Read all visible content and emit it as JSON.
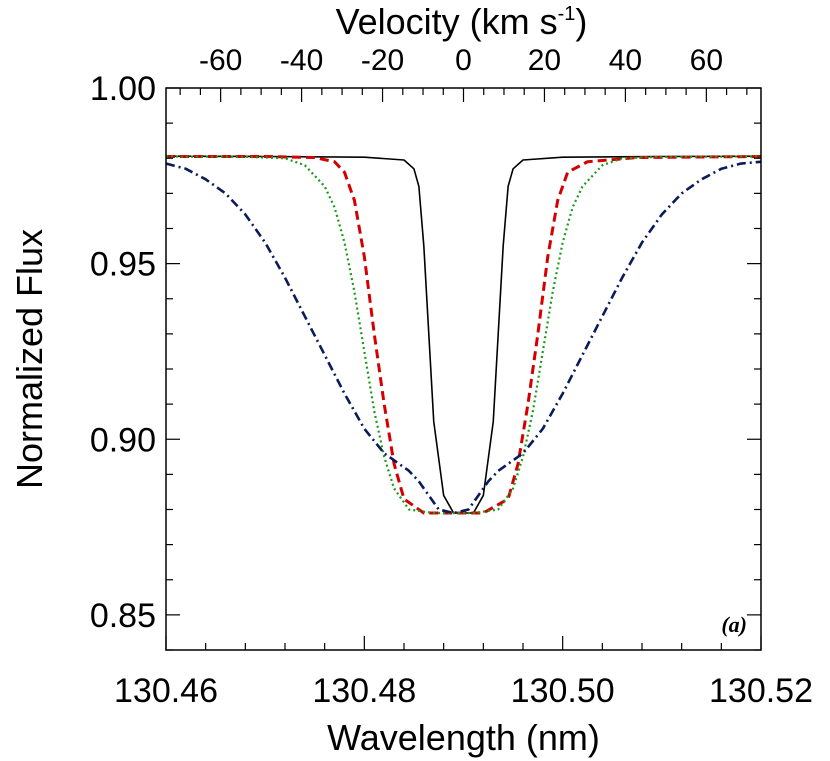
{
  "chart_data": {
    "type": "line",
    "xlabel": "Wavelength (nm)",
    "ylabel": "Normalized Flux",
    "x2label_main": "Velocity (km s",
    "x2label_sup": "-1",
    "x2label_end": ")",
    "panel_label": "(a)",
    "xlim": [
      130.46,
      130.52
    ],
    "ylim": [
      0.84,
      1.0
    ],
    "x2lim": [
      -73.5,
      73.5
    ],
    "xticks": [
      130.46,
      130.48,
      130.5,
      130.52
    ],
    "xtick_labels": [
      "130.46",
      "130.48",
      "130.50",
      "130.52"
    ],
    "yticks": [
      0.85,
      0.9,
      0.95,
      1.0
    ],
    "ytick_labels": [
      "0.85",
      "0.90",
      "0.95",
      "1.00"
    ],
    "x2ticks": [
      -60,
      -40,
      -20,
      0,
      20,
      40,
      60
    ],
    "x2tick_labels": [
      "-60",
      "-40",
      "-20",
      "0",
      "20",
      "40",
      "60"
    ],
    "grid": false,
    "series": [
      {
        "color": "#000000",
        "style": "solid",
        "x": [
          130.46,
          130.47,
          130.48,
          130.484,
          130.485,
          130.4855,
          130.486,
          130.4865,
          130.487,
          130.488,
          130.489,
          130.49,
          130.491,
          130.492,
          130.493,
          130.4935,
          130.494,
          130.4945,
          130.495,
          130.496,
          130.5,
          130.51,
          130.52
        ],
        "values": [
          0.9806,
          0.9805,
          0.9803,
          0.9795,
          0.977,
          0.972,
          0.955,
          0.93,
          0.905,
          0.884,
          0.879,
          0.879,
          0.879,
          0.884,
          0.905,
          0.93,
          0.955,
          0.972,
          0.977,
          0.9795,
          0.9803,
          0.9805,
          0.9806
        ]
      },
      {
        "color": "#d40000",
        "style": "dashed",
        "x": [
          130.46,
          130.47,
          130.475,
          130.477,
          130.478,
          130.479,
          130.48,
          130.481,
          130.482,
          130.483,
          130.484,
          130.486,
          130.489,
          130.492,
          130.4945,
          130.4955,
          130.4965,
          130.4975,
          130.4985,
          130.4995,
          130.5005,
          130.5025,
          130.5075,
          130.52
        ],
        "values": [
          0.9805,
          0.9805,
          0.9802,
          0.979,
          0.976,
          0.968,
          0.952,
          0.93,
          0.91,
          0.893,
          0.883,
          0.879,
          0.879,
          0.879,
          0.883,
          0.893,
          0.91,
          0.93,
          0.952,
          0.968,
          0.976,
          0.979,
          0.9802,
          0.9805
        ]
      },
      {
        "color": "#1a9a1a",
        "style": "dotted",
        "x": [
          130.46,
          130.468,
          130.472,
          130.474,
          130.476,
          130.477,
          130.478,
          130.479,
          130.48,
          130.481,
          130.482,
          130.483,
          130.4845,
          130.487,
          130.489,
          130.491,
          130.4935,
          130.495,
          130.496,
          130.497,
          130.498,
          130.499,
          130.5,
          130.501,
          130.502,
          130.504,
          130.506,
          130.51,
          130.52
        ],
        "values": [
          0.9805,
          0.9804,
          0.98,
          0.978,
          0.972,
          0.966,
          0.956,
          0.942,
          0.925,
          0.908,
          0.895,
          0.886,
          0.88,
          0.879,
          0.879,
          0.879,
          0.88,
          0.886,
          0.895,
          0.908,
          0.925,
          0.942,
          0.956,
          0.966,
          0.972,
          0.978,
          0.98,
          0.9804,
          0.9805
        ]
      },
      {
        "color": "#0a1a5a",
        "style": "dashdot",
        "x": [
          130.46,
          130.462,
          130.464,
          130.466,
          130.468,
          130.47,
          130.472,
          130.474,
          130.476,
          130.478,
          130.48,
          130.482,
          130.4835,
          130.4845,
          130.4855,
          130.4865,
          130.4875,
          130.489,
          130.4905,
          130.4915,
          130.4925,
          130.4935,
          130.4945,
          130.496,
          130.498,
          130.5,
          130.502,
          130.504,
          130.506,
          130.508,
          130.51,
          130.512,
          130.514,
          130.516,
          130.518,
          130.52
        ],
        "values": [
          0.9785,
          0.977,
          0.974,
          0.97,
          0.964,
          0.956,
          0.946,
          0.935,
          0.924,
          0.913,
          0.903,
          0.896,
          0.893,
          0.891,
          0.888,
          0.884,
          0.88,
          0.879,
          0.88,
          0.884,
          0.888,
          0.891,
          0.893,
          0.896,
          0.903,
          0.913,
          0.924,
          0.935,
          0.946,
          0.956,
          0.964,
          0.97,
          0.974,
          0.977,
          0.9785,
          0.979
        ]
      }
    ]
  }
}
